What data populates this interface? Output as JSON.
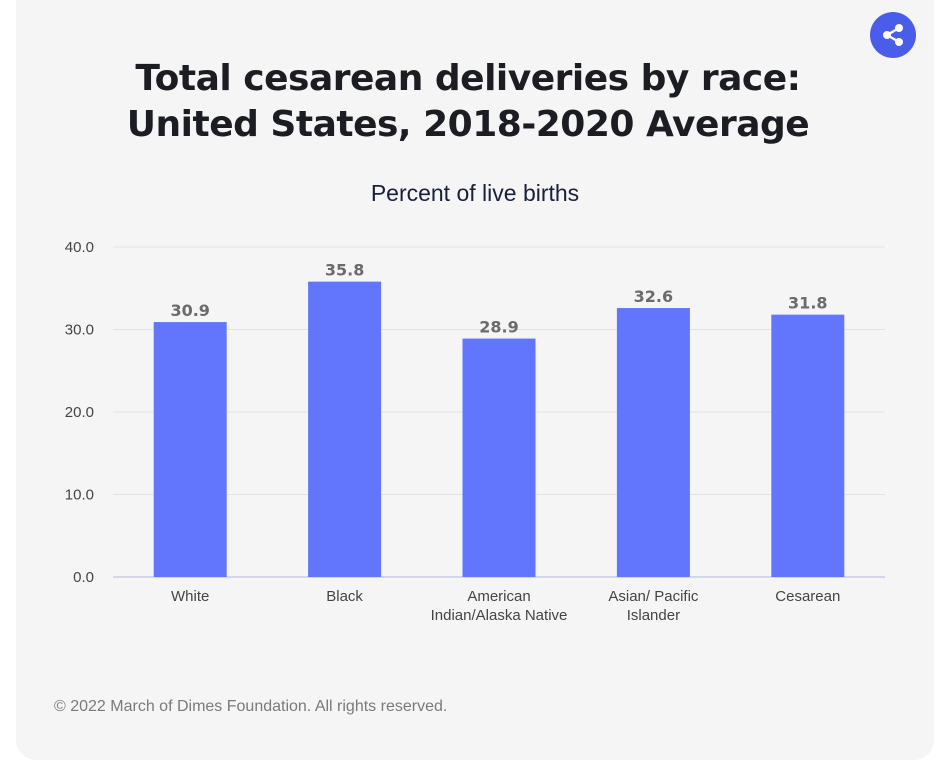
{
  "header": {
    "title_lines": [
      "Total cesarean deliveries by race:",
      "United States, 2018-2020 Average"
    ],
    "subtitle": "Percent of live births",
    "share_icon": "share-icon"
  },
  "footer": {
    "copyright": "© 2022 March of Dimes Foundation. All rights reserved."
  },
  "colors": {
    "bar": "#6176fd",
    "share_button": "#4a5dea",
    "grid": "#e3e3e6",
    "axis_text": "#444444",
    "label_text": "#6b6b6b"
  },
  "chart_data": {
    "type": "bar",
    "title": "Total cesarean deliveries by race: United States, 2018-2020 Average",
    "subtitle": "Percent of live births",
    "categories": [
      "White",
      "Black",
      "American Indian/Alaska Native",
      "Asian/ Pacific Islander",
      "Cesarean"
    ],
    "category_label_lines": [
      [
        "White"
      ],
      [
        "Black"
      ],
      [
        "American",
        "Indian/Alaska Native"
      ],
      [
        "Asian/ Pacific",
        "Islander"
      ],
      [
        "Cesarean"
      ]
    ],
    "values": [
      30.9,
      35.8,
      28.9,
      32.6,
      31.8
    ],
    "data_labels": [
      "30.9",
      "35.8",
      "28.9",
      "32.6",
      "31.8"
    ],
    "yticks": [
      "0.0",
      "10.0",
      "20.0",
      "30.0",
      "40.0"
    ],
    "ylim": [
      0,
      40
    ],
    "grid": true
  }
}
